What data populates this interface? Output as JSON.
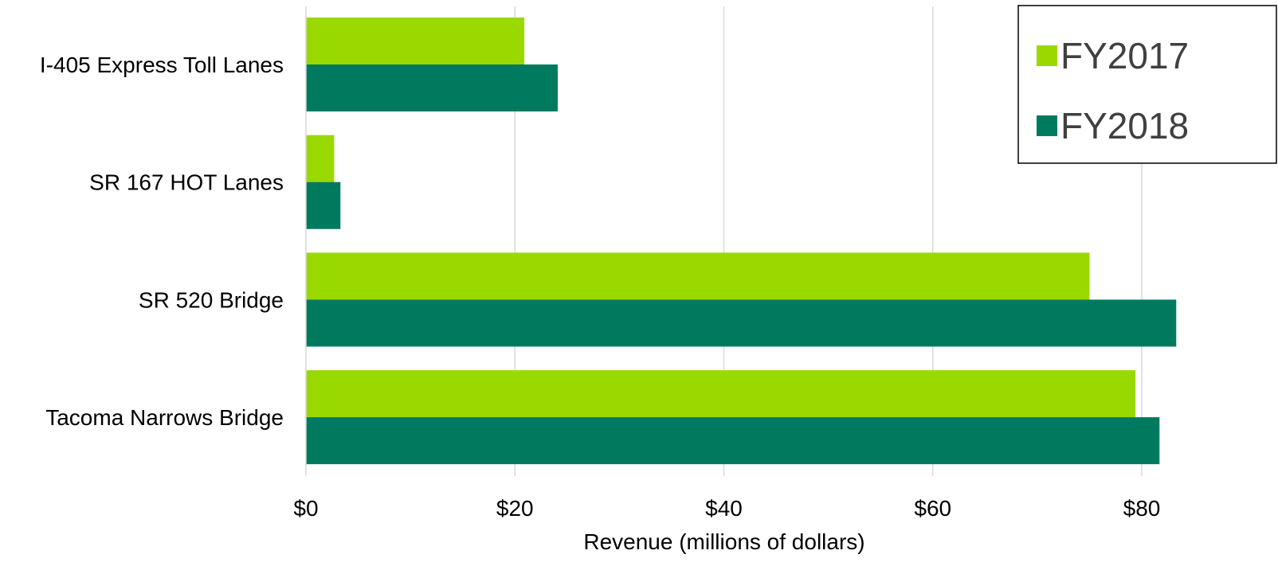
{
  "chart_data": {
    "type": "bar",
    "orientation": "horizontal",
    "title": "",
    "categories": [
      "I-405 Express Toll Lanes",
      "SR 167 HOT Lanes",
      "SR 520 Bridge",
      "Tacoma Narrows Bridge"
    ],
    "series": [
      {
        "name": "FY2017",
        "color": "#99D900",
        "values": [
          20.9,
          2.7,
          75.0,
          79.4
        ]
      },
      {
        "name": "FY2018",
        "color": "#007A5E",
        "values": [
          24.1,
          3.3,
          83.3,
          81.7
        ]
      }
    ],
    "x_ticks": [
      {
        "value": 0,
        "label": "$0"
      },
      {
        "value": 20,
        "label": "$20"
      },
      {
        "value": 40,
        "label": "$40"
      },
      {
        "value": 60,
        "label": "$60"
      },
      {
        "value": 80,
        "label": "$80"
      }
    ],
    "xlabel": "Revenue (millions of dollars)",
    "ylabel": "",
    "xlim": [
      0,
      90
    ],
    "grid": "vertical",
    "gridline_color": "#D9D9D9",
    "legend": {
      "position": "top-right",
      "border": true
    }
  }
}
